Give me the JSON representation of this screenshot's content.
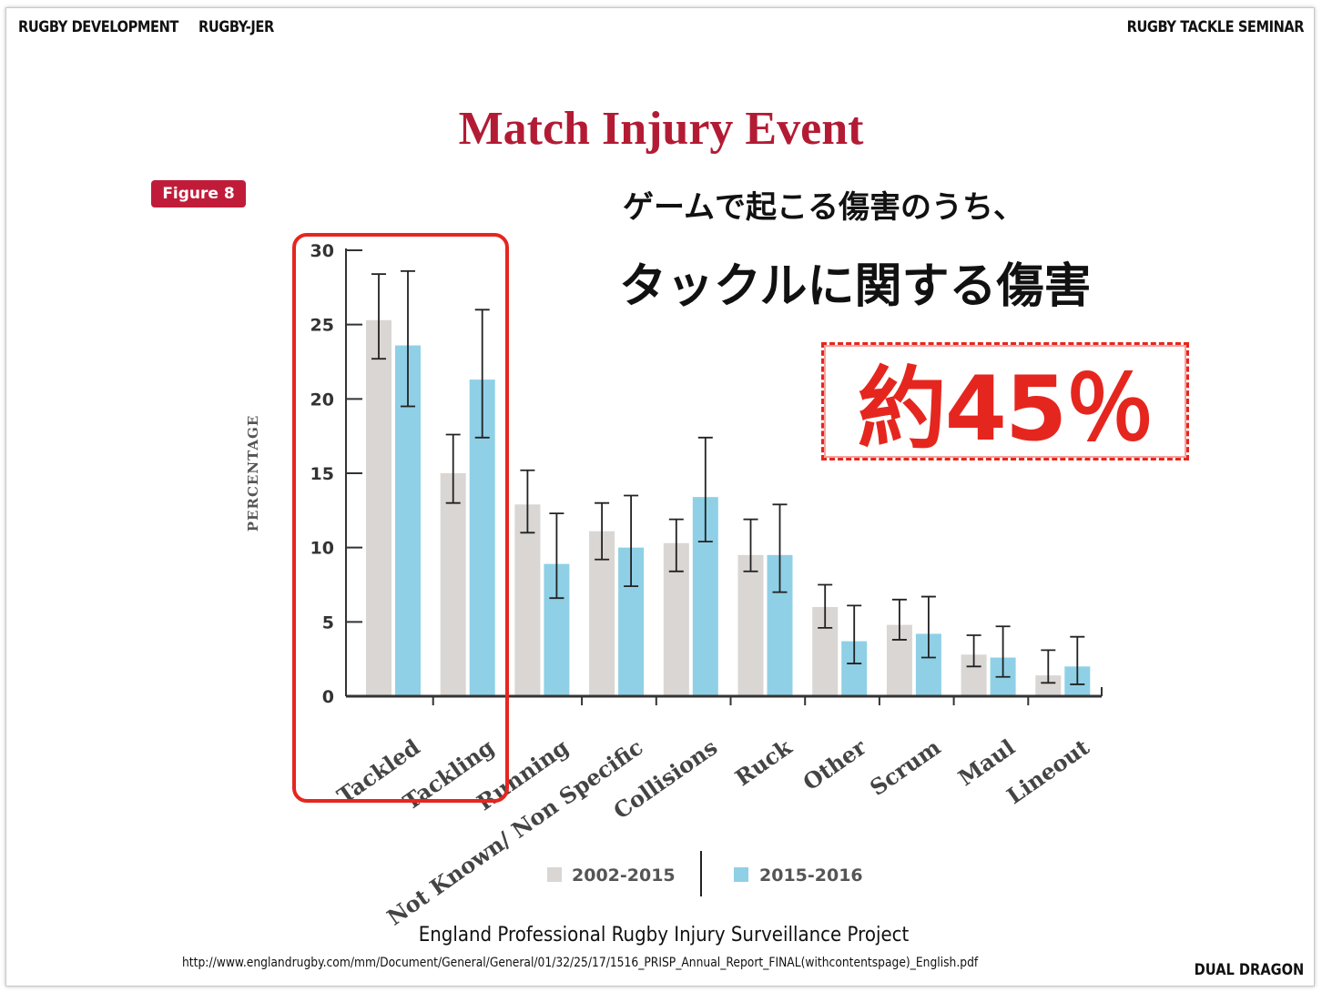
{
  "header": {
    "left_1": "RUGBY DEVELOPMENT",
    "left_2": "RUGBY-JER",
    "right": "RUGBY TACKLE SEMINAR"
  },
  "title": "Match Injury Event",
  "figure_badge": "Figure 8",
  "annotation": {
    "line1": "ゲームで起こる傷害のうち、",
    "line2": "タックルに関する傷害",
    "value": "約45％"
  },
  "source": "England Professional Rugby Injury Surveillance Project",
  "url": "http://www.englandrugby.com/mm/Document/General/General/01/32/25/17/1516_PRISP_Annual_Report_FINAL(withcontentspage)_English.pdf",
  "footer": "DUAL DRAGON",
  "colors": {
    "series1": "#d9d6d3",
    "series2": "#8fd0e6",
    "highlight": "#e5261f",
    "title": "#b31b34"
  },
  "chart_data": {
    "type": "bar",
    "title": "Match Injury Event",
    "ylabel": "PERCENTAGE",
    "xlabel": "",
    "ylim": [
      0,
      30
    ],
    "yticks": [
      0,
      5,
      10,
      15,
      20,
      25,
      30
    ],
    "categories": [
      "Tackled",
      "Tackling",
      "Running",
      "Not Known/ Non Specific",
      "Collisions",
      "Ruck",
      "Other",
      "Scrum",
      "Maul",
      "Lineout"
    ],
    "series": [
      {
        "name": "2002-2015",
        "values": [
          25.3,
          15.0,
          12.9,
          11.1,
          10.3,
          9.5,
          6.0,
          4.8,
          2.8,
          1.4
        ],
        "error_low": [
          22.7,
          13.0,
          11.0,
          9.2,
          8.4,
          8.4,
          4.6,
          3.8,
          2.0,
          0.9
        ],
        "error_high": [
          28.4,
          17.6,
          15.2,
          13.0,
          11.9,
          11.9,
          7.5,
          6.5,
          4.1,
          3.1
        ]
      },
      {
        "name": "2015-2016",
        "values": [
          23.6,
          21.3,
          8.9,
          10.0,
          13.4,
          9.5,
          3.7,
          4.2,
          2.6,
          2.0
        ],
        "error_low": [
          19.5,
          17.4,
          6.6,
          7.4,
          10.4,
          7.0,
          2.2,
          2.6,
          1.3,
          0.8
        ],
        "error_high": [
          28.6,
          26.0,
          12.3,
          13.5,
          17.4,
          12.9,
          6.1,
          6.7,
          4.7,
          4.0
        ]
      }
    ],
    "legend_position": "bottom",
    "grid": false,
    "highlight_categories": [
      "Tackled",
      "Tackling"
    ]
  }
}
